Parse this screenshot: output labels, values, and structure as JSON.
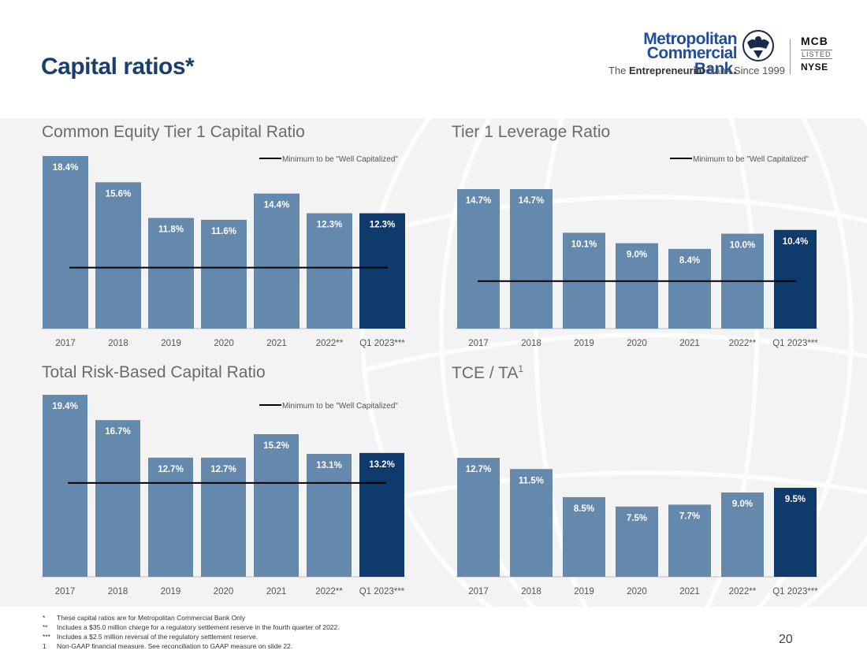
{
  "slide": {
    "title": "Capital ratios*",
    "page_number": "20"
  },
  "logo": {
    "name_line1": "Metropolitan",
    "name_line2": "Commercial Bank.",
    "tagline_pre": "The ",
    "tagline_bold": "Entrepreneurial",
    "tagline_post": " Bank Since 1999",
    "ticker": "MCB",
    "listed": "LISTED",
    "exchange": "NYSE"
  },
  "colors": {
    "title": "#1a3e6e",
    "bar": "#6588ad",
    "bar_highlight": "#0f3a6c",
    "min_line": "#000000",
    "axis_text": "#555555"
  },
  "footnotes": [
    {
      "mark": "*",
      "text": "These capital ratios are for Metropolitan Commercial Bank Only"
    },
    {
      "mark": "**",
      "text": "Includes a $35.0 million charge for a regulatory settlement reserve in the fourth quarter of 2022."
    },
    {
      "mark": "***",
      "text": "Includes a $2.5 million reversal of the regulatory settlement reserve."
    },
    {
      "mark": "1",
      "text": "Non-GAAP financial measure. See reconciliation to GAAP measure on slide 22."
    }
  ],
  "chart_data": [
    {
      "type": "bar",
      "title": "Common Equity Tier 1 Capital Ratio",
      "categories": [
        "2017",
        "2018",
        "2019",
        "2020",
        "2021",
        "2022**",
        "Q1 2023***"
      ],
      "values": [
        18.4,
        15.6,
        11.8,
        11.6,
        14.4,
        12.3,
        12.3
      ],
      "labels": [
        "18.4%",
        "15.6%",
        "11.8%",
        "11.6%",
        "14.4%",
        "12.3%",
        "12.3%"
      ],
      "highlight_index": 6,
      "reference_line": {
        "value": 6.5,
        "label": "Minimum to be \"Well Capitalized\""
      },
      "ylim": [
        0,
        18.4
      ]
    },
    {
      "type": "bar",
      "title": "Tier 1 Leverage Ratio",
      "categories": [
        "2017",
        "2018",
        "2019",
        "2020",
        "2021",
        "2022**",
        "Q1 2023***"
      ],
      "values": [
        14.7,
        14.7,
        10.1,
        9.0,
        8.4,
        10.0,
        10.4
      ],
      "labels": [
        "14.7%",
        "14.7%",
        "10.1%",
        "9.0%",
        "8.4%",
        "10.0%",
        "10.4%"
      ],
      "highlight_index": 6,
      "reference_line": {
        "value": 5.0,
        "label": "Minimum to be \"Well Capitalized\""
      },
      "ylim": [
        0,
        14.7
      ]
    },
    {
      "type": "bar",
      "title": "Total Risk-Based Capital Ratio",
      "categories": [
        "2017",
        "2018",
        "2019",
        "2020",
        "2021",
        "2022**",
        "Q1 2023***"
      ],
      "values": [
        19.4,
        16.7,
        12.7,
        12.7,
        15.2,
        13.1,
        13.2
      ],
      "labels": [
        "19.4%",
        "16.7%",
        "12.7%",
        "12.7%",
        "15.2%",
        "13.1%",
        "13.2%"
      ],
      "highlight_index": 6,
      "reference_line": {
        "value": 10.0,
        "label": "Minimum to be \"Well Capitalized\""
      },
      "ylim": [
        0,
        19.4
      ]
    },
    {
      "type": "bar",
      "title": "TCE / TA",
      "title_superscript": "1",
      "categories": [
        "2017",
        "2018",
        "2019",
        "2020",
        "2021",
        "2022**",
        "Q1 2023***"
      ],
      "values": [
        12.7,
        11.5,
        8.5,
        7.5,
        7.7,
        9.0,
        9.5
      ],
      "labels": [
        "12.7%",
        "11.5%",
        "8.5%",
        "7.5%",
        "7.7%",
        "9.0%",
        "9.5%"
      ],
      "highlight_index": 6,
      "reference_line": null,
      "ylim": [
        0,
        12.7
      ]
    }
  ]
}
